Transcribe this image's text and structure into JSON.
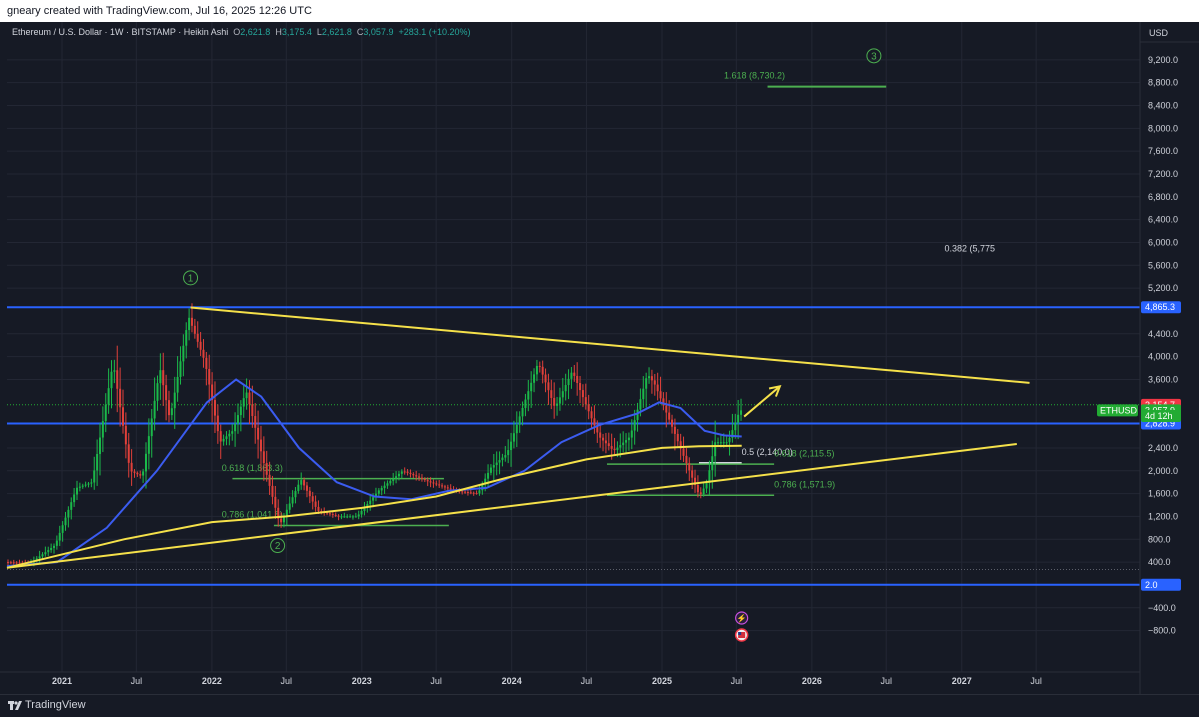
{
  "header": {
    "caption": "gneary created with TradingView.com, Jul 16, 2025 12:26 UTC"
  },
  "legend": {
    "symbol": "Ethereum / U.S. Dollar · 1W · BITSTAMP · Heikin Ashi",
    "open_label": "O",
    "open": "2,621.8",
    "high_label": "H",
    "high": "3,175.4",
    "low_label": "L",
    "low": "2,621.8",
    "close_label": "C",
    "close": "3,057.9",
    "change": "+283.1 (+10.20%)"
  },
  "footer": {
    "brand": "TradingView"
  },
  "colors": {
    "background": "#161a25",
    "up": "#26a69a",
    "candle_up": "#1bb94a",
    "candle_down": "#e0403a",
    "blue_line": "#2962ff",
    "ma_blue": "#3b5cf0",
    "yellow": "#f5e14a",
    "fib_green": "#4caf50",
    "label_red": "#f23645",
    "label_green": "#22ab33",
    "label_blue": "#2962ff"
  },
  "chart_data": {
    "type": "candlestick",
    "title": "Ethereum / U.S. Dollar · 1W · BITSTAMP · Heikin Ashi",
    "currency": "USD",
    "y_ticks": [
      9200,
      8800,
      8400,
      8000,
      7600,
      7200,
      6800,
      6400,
      6000,
      5600,
      5200,
      4400,
      4000,
      3600,
      2400,
      2000,
      1600,
      1200,
      800,
      400,
      -400,
      -800
    ],
    "y_tick_labels": [
      "9,200.0",
      "8,800.0",
      "8,400.0",
      "8,000.0",
      "7,600.0",
      "7,200.0",
      "6,800.0",
      "6,400.0",
      "6,000.0",
      "5,600.0",
      "5,200.0",
      "4,400.0",
      "4,000.0",
      "3,600.0",
      "2,400.0",
      "2,000.0",
      "1,600.0",
      "1,200.0",
      "800.0",
      "400.0",
      "−400.0",
      "−800.0"
    ],
    "ylim": [
      -1000,
      9600
    ],
    "x_ticks": [
      {
        "date": "2021-01-01",
        "label": "2021",
        "bold": true
      },
      {
        "date": "2021-07-01",
        "label": "Jul",
        "bold": false
      },
      {
        "date": "2022-01-01",
        "label": "2022",
        "bold": true
      },
      {
        "date": "2022-07-01",
        "label": "Jul",
        "bold": false
      },
      {
        "date": "2023-01-01",
        "label": "2023",
        "bold": true
      },
      {
        "date": "2023-07-01",
        "label": "Jul",
        "bold": false
      },
      {
        "date": "2024-01-01",
        "label": "2024",
        "bold": true
      },
      {
        "date": "2024-07-01",
        "label": "Jul",
        "bold": false
      },
      {
        "date": "2025-01-01",
        "label": "2025",
        "bold": true
      },
      {
        "date": "2025-07-01",
        "label": "Jul",
        "bold": false
      },
      {
        "date": "2026-01-01",
        "label": "2026",
        "bold": true
      },
      {
        "date": "2026-07-01",
        "label": "Jul",
        "bold": false
      },
      {
        "date": "2027-01-01",
        "label": "2027",
        "bold": true
      },
      {
        "date": "2027-07-01",
        "label": "Jul",
        "bold": false
      }
    ],
    "xlim": [
      "2020-08-20",
      "2028-03-10"
    ],
    "price_path": [
      [
        "2020-08-20",
        400
      ],
      [
        "2020-10-20",
        380
      ],
      [
        "2020-12-20",
        700
      ],
      [
        "2021-02-10",
        1700
      ],
      [
        "2021-03-20",
        1800
      ],
      [
        "2021-05-10",
        3900
      ],
      [
        "2021-06-20",
        2000
      ],
      [
        "2021-07-20",
        1900
      ],
      [
        "2021-09-01",
        3800
      ],
      [
        "2021-09-25",
        2900
      ],
      [
        "2021-11-10",
        4700
      ],
      [
        "2021-12-20",
        3900
      ],
      [
        "2022-01-25",
        2500
      ],
      [
        "2022-02-25",
        2700
      ],
      [
        "2022-03-30",
        3400
      ],
      [
        "2022-05-20",
        1900
      ],
      [
        "2022-06-20",
        1050
      ],
      [
        "2022-08-10",
        1850
      ],
      [
        "2022-09-20",
        1300
      ],
      [
        "2022-11-10",
        1200
      ],
      [
        "2022-12-25",
        1200
      ],
      [
        "2023-02-15",
        1650
      ],
      [
        "2023-04-15",
        2000
      ],
      [
        "2023-06-20",
        1800
      ],
      [
        "2023-08-20",
        1650
      ],
      [
        "2023-10-15",
        1600
      ],
      [
        "2023-11-15",
        2050
      ],
      [
        "2023-12-25",
        2300
      ],
      [
        "2024-03-10",
        3900
      ],
      [
        "2024-04-20",
        3100
      ],
      [
        "2024-06-01",
        3750
      ],
      [
        "2024-08-05",
        2600
      ],
      [
        "2024-09-10",
        2350
      ],
      [
        "2024-10-20",
        2600
      ],
      [
        "2024-12-01",
        3700
      ],
      [
        "2024-12-20",
        3500
      ],
      [
        "2025-02-03",
        2700
      ],
      [
        "2025-04-07",
        1550
      ],
      [
        "2025-04-25",
        1800
      ],
      [
        "2025-05-15",
        2500
      ],
      [
        "2025-06-15",
        2500
      ],
      [
        "2025-07-14",
        3058
      ]
    ],
    "ma_blue": [
      [
        "2020-08-20",
        330
      ],
      [
        "2020-12-20",
        400
      ],
      [
        "2021-04-20",
        1000
      ],
      [
        "2021-08-20",
        2000
      ],
      [
        "2021-12-20",
        3200
      ],
      [
        "2022-03-01",
        3600
      ],
      [
        "2022-05-01",
        3300
      ],
      [
        "2022-08-01",
        2400
      ],
      [
        "2022-11-01",
        1800
      ],
      [
        "2023-02-01",
        1550
      ],
      [
        "2023-05-01",
        1500
      ],
      [
        "2023-08-01",
        1650
      ],
      [
        "2023-11-01",
        1700
      ],
      [
        "2024-02-01",
        2000
      ],
      [
        "2024-05-01",
        2500
      ],
      [
        "2024-08-01",
        2800
      ],
      [
        "2024-11-01",
        3000
      ],
      [
        "2024-12-25",
        3200
      ],
      [
        "2025-02-15",
        3100
      ],
      [
        "2025-04-15",
        2700
      ],
      [
        "2025-06-01",
        2620
      ],
      [
        "2025-07-14",
        2600
      ]
    ],
    "ma_yellow": [
      [
        "2020-08-20",
        300
      ],
      [
        "2021-06-01",
        800
      ],
      [
        "2022-01-01",
        1100
      ],
      [
        "2022-07-01",
        1200
      ],
      [
        "2023-01-01",
        1350
      ],
      [
        "2023-07-01",
        1550
      ],
      [
        "2024-01-01",
        1900
      ],
      [
        "2024-07-01",
        2200
      ],
      [
        "2025-01-01",
        2400
      ],
      [
        "2025-04-01",
        2430
      ],
      [
        "2025-07-14",
        2440
      ]
    ],
    "trendlines": [
      {
        "name": "upper",
        "color": "#f5e14a",
        "points": [
          [
            "2021-11-10",
            4860
          ],
          [
            "2027-06-15",
            3540
          ]
        ]
      },
      {
        "name": "lower",
        "color": "#f5e14a",
        "points": [
          [
            "2020-08-20",
            300
          ],
          [
            "2027-05-15",
            2470
          ]
        ]
      }
    ],
    "arrow": {
      "from": [
        "2025-07-20",
        2950
      ],
      "to": [
        "2025-10-15",
        3480
      ],
      "color": "#f5e14a"
    },
    "horizontal_lines": [
      {
        "value": 4865.3,
        "color": "#2962ff",
        "label": "4,865.3"
      },
      {
        "value": 2828.9,
        "color": "#2962ff",
        "label": "2,828.9"
      },
      {
        "value": 2.0,
        "color": "#2962ff",
        "label": "2.0"
      }
    ],
    "fib_levels": [
      {
        "text": "1.618 (8,730.2)",
        "value": 8730.2,
        "line": [
          "2025-09-15",
          "2026-07-01"
        ],
        "text_at": [
          "2025-06-01",
          8870
        ],
        "color": "#4caf50"
      },
      {
        "text": "0.382 (5,775",
        "value": 5775,
        "line": null,
        "text_at": [
          "2026-11-20",
          5840
        ],
        "color": "#d1d4dc"
      },
      {
        "text": "0.618 (1,863.3)",
        "value": 1863.3,
        "line": [
          "2022-02-20",
          "2023-07-20"
        ],
        "text_at": [
          "2022-01-25",
          2000
        ],
        "color": "#4caf50"
      },
      {
        "text": "0.786 (1,041.8)",
        "value": 1041.8,
        "line": [
          "2022-06-01",
          "2023-08-01"
        ],
        "text_at": [
          "2022-01-25",
          1180
        ],
        "color": "#4caf50"
      },
      {
        "text": "0.5 (2,140.0)",
        "value": 2140.0,
        "line": [
          "2025-04-01",
          "2025-07-14"
        ],
        "text_at": [
          "2025-07-14",
          2280
        ],
        "color": "#d1d4dc"
      },
      {
        "text": "0.618 (2,115.5)",
        "value": 2115.5,
        "line": [
          "2024-08-20",
          "2025-10-01"
        ],
        "text_at": [
          "2025-10-01",
          2250
        ],
        "color": "#4caf50"
      },
      {
        "text": "0.786 (1,571.9)",
        "value": 1571.9,
        "line": [
          "2024-08-20",
          "2025-10-01"
        ],
        "text_at": [
          "2025-10-01",
          1710
        ],
        "color": "#4caf50"
      }
    ],
    "wave_labels": [
      {
        "text": "1",
        "at": [
          "2021-11-10",
          5380
        ]
      },
      {
        "text": "2",
        "at": [
          "2022-06-10",
          690
        ]
      },
      {
        "text": "3",
        "at": [
          "2026-06-01",
          9270
        ]
      }
    ],
    "price_labels": [
      {
        "text": "3,154.7",
        "value": 3154.7,
        "bg": "#f23645"
      },
      {
        "text": "ETHUSD",
        "value": 3057.9,
        "bg": "#22ab33",
        "left": true
      },
      {
        "text": "3,057.9",
        "value": 3057.9,
        "bg": "#22ab33"
      },
      {
        "text": "4d 12h",
        "value": 2960,
        "bg": "#22ab33"
      }
    ],
    "last_close": 3057.9,
    "dotted_line": 3157
  }
}
